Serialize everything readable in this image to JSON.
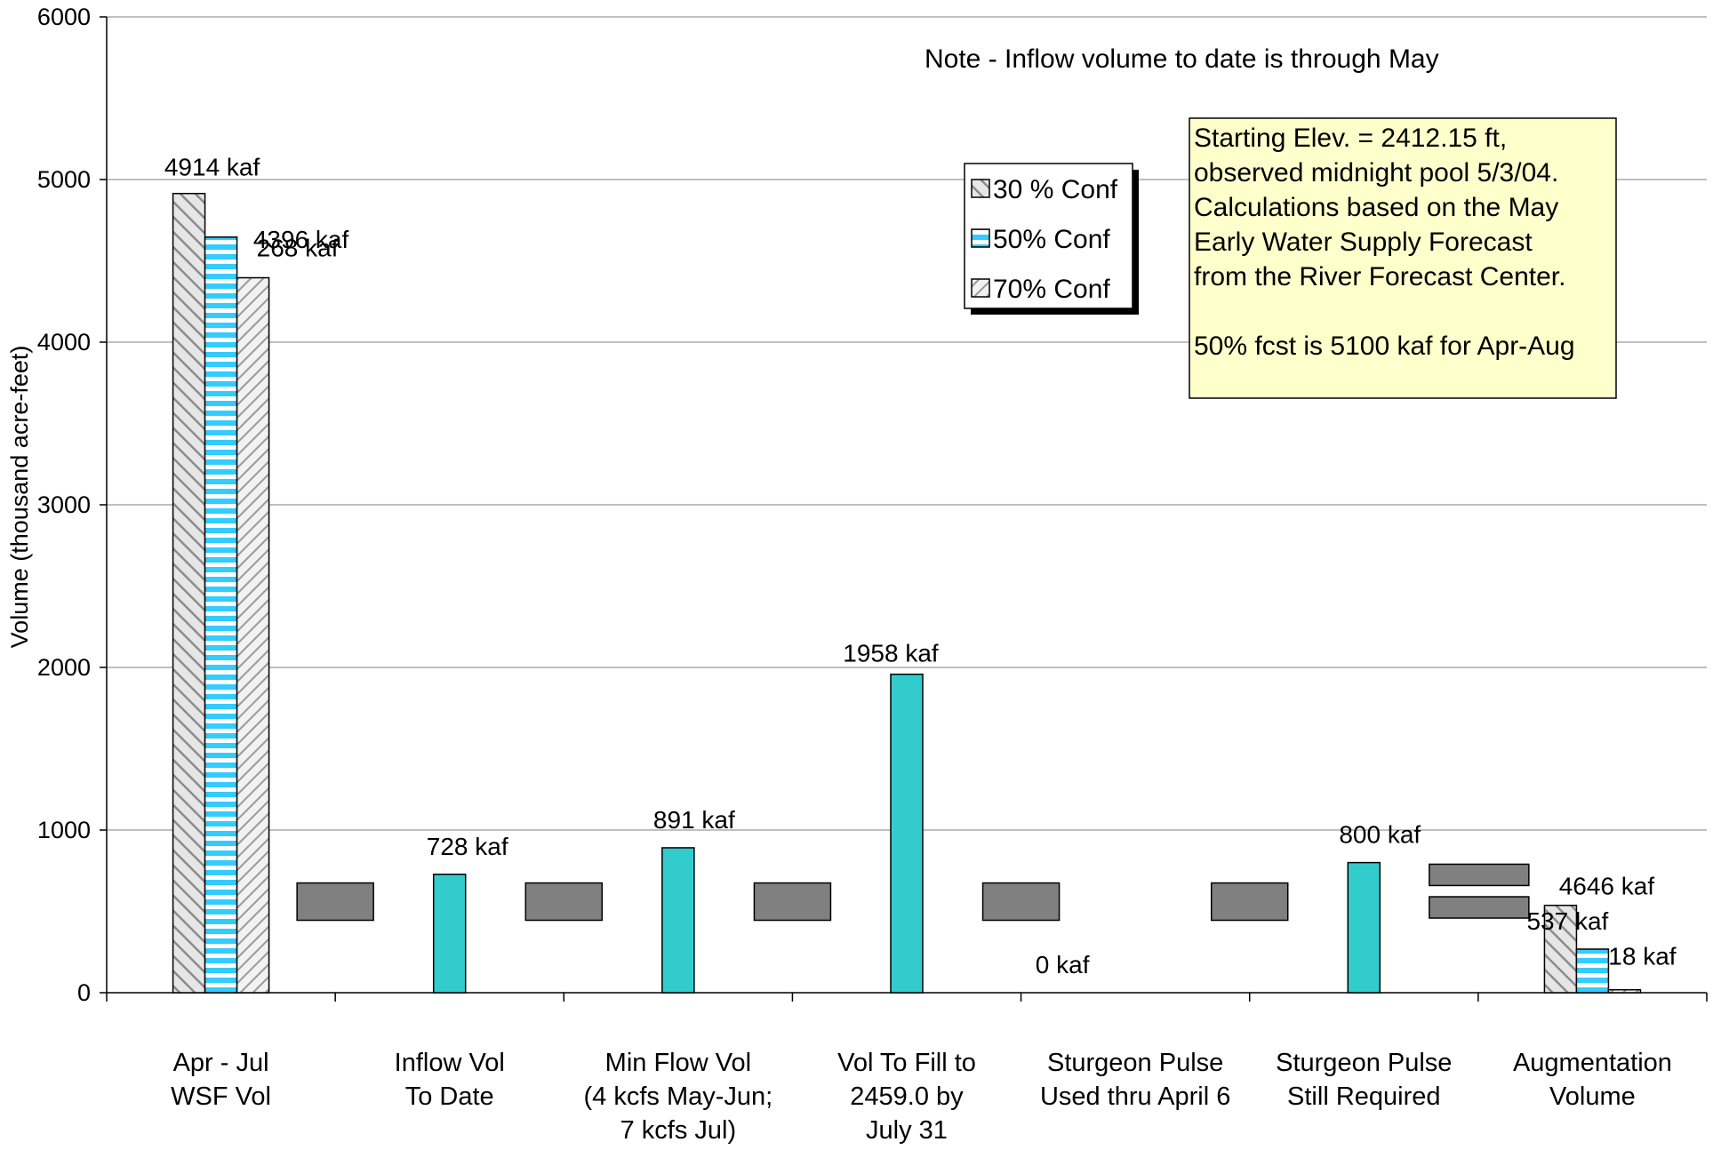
{
  "chart_data": {
    "type": "bar",
    "ylabel": "Volume (thousand acre-feet)",
    "ylim": [
      0,
      6000
    ],
    "yticks": [
      0,
      1000,
      2000,
      3000,
      4000,
      5000,
      6000
    ],
    "grid": true,
    "categories": [
      [
        "Apr - Jul",
        "WSF Vol"
      ],
      [
        "Inflow Vol",
        "To Date"
      ],
      [
        "Min Flow Vol",
        "(4 kcfs May-Jun;",
        "7 kcfs Jul)"
      ],
      [
        "Vol To Fill to",
        "2459.0 by",
        "July 31"
      ],
      [
        "Sturgeon Pulse",
        "Used thru April 6"
      ],
      [
        "Sturgeon Pulse",
        "Still Required"
      ],
      [
        "Augmentation",
        "Volume"
      ]
    ],
    "series": [
      {
        "name": "30 % Conf",
        "pattern": "diagonal-gray",
        "values": [
          4914,
          null,
          null,
          null,
          null,
          null,
          537
        ]
      },
      {
        "name": "50% Conf",
        "pattern": "cyan-striped",
        "values": [
          4646,
          null,
          null,
          null,
          null,
          null,
          268
        ]
      },
      {
        "name": "70% Conf",
        "pattern": "diagonal-light",
        "values": [
          4396,
          null,
          null,
          null,
          null,
          null,
          18
        ]
      }
    ],
    "single_bars": [
      {
        "category": 1,
        "value": 728
      },
      {
        "category": 2,
        "value": 891
      },
      {
        "category": 3,
        "value": 1958
      },
      {
        "category": 5,
        "value": 800
      }
    ],
    "data_labels": [
      "4914 kaf",
      "4646 kaf",
      "4396 kaf",
      "728 kaf",
      "891 kaf",
      "1958 kaf",
      "0 kaf",
      "800 kaf",
      "537 kaf",
      "268 kaf",
      "18 kaf"
    ],
    "operators": [
      "minus",
      "minus",
      "minus",
      "minus",
      "minus",
      "equals"
    ],
    "legend": [
      "30 % Conf",
      "50% Conf",
      "70% Conf"
    ],
    "legend_position": "top-right-center",
    "note": "Note - Inflow volume to date is through May",
    "info_box": [
      "Starting Elev. = 2412.15 ft,",
      "observed midnight pool 5/3/04.",
      "Calculations based on the May",
      "Early Water Supply Forecast",
      "from the River Forecast Center.",
      "",
      "50% fcst is 5100 kaf for Apr-Aug"
    ],
    "colors": {
      "single_bar": "#33CCCC",
      "cyan_stripe": "#33CCFF",
      "operator": "#808080",
      "info_box_bg": "#FFFFCC",
      "gridline": "#808080"
    }
  }
}
